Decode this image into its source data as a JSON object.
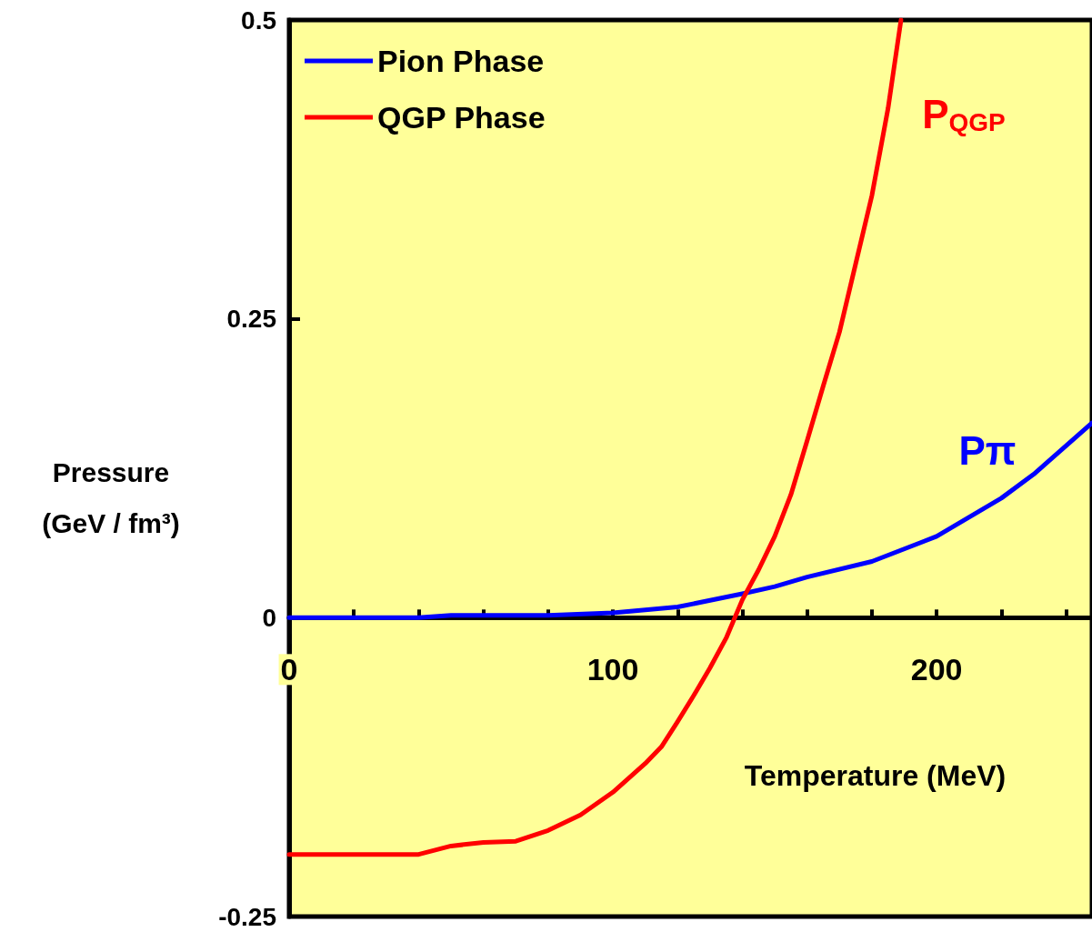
{
  "chart_data": {
    "type": "line",
    "xlabel": "Temperature (MeV)",
    "ylabel": "Pressure\n(GeV / fm³)",
    "xlim": [
      0,
      248
    ],
    "ylim": [
      -0.25,
      0.5
    ],
    "xticks": [
      0,
      {
        "value": 20,
        "label": null
      },
      {
        "value": 40,
        "label": null
      },
      {
        "value": 60,
        "label": null
      },
      {
        "value": 80,
        "label": null
      },
      100,
      {
        "value": 120,
        "label": null
      },
      {
        "value": 140,
        "label": null
      },
      {
        "value": 160,
        "label": null
      },
      {
        "value": 180,
        "label": null
      },
      200,
      {
        "value": 220,
        "label": null
      },
      {
        "value": 240,
        "label": null
      }
    ],
    "yticks": [
      -0.25,
      0,
      0.25,
      0.5
    ],
    "series": [
      {
        "name": "Pion Phase",
        "color": "#0000ff",
        "x": [
          0,
          40,
          50,
          80,
          100,
          120,
          140,
          150,
          160,
          180,
          200,
          220,
          230,
          248
        ],
        "values": [
          0,
          0,
          0.002,
          0.002,
          0.004,
          0.009,
          0.02,
          0.026,
          0.034,
          0.047,
          0.068,
          0.1,
          0.12,
          0.163
        ]
      },
      {
        "name": "QGP Phase",
        "color": "#ff0000",
        "x": [
          0,
          40,
          50,
          60,
          70,
          80,
          90,
          100,
          110,
          115,
          120,
          125,
          130,
          135,
          140,
          145,
          150,
          155,
          160,
          165,
          170,
          175,
          180,
          185,
          189
        ],
        "values": [
          -0.198,
          -0.198,
          -0.191,
          -0.188,
          -0.187,
          -0.178,
          -0.165,
          -0.146,
          -0.122,
          -0.108,
          -0.087,
          -0.065,
          -0.042,
          -0.017,
          0.015,
          0.04,
          0.068,
          0.103,
          0.148,
          0.194,
          0.239,
          0.296,
          0.353,
          0.426,
          0.5
        ]
      }
    ],
    "annotations": [
      "Pπ",
      "P$_{QGP}$"
    ],
    "legend": "top left",
    "marker": "none",
    "line_style": "solid"
  }
}
